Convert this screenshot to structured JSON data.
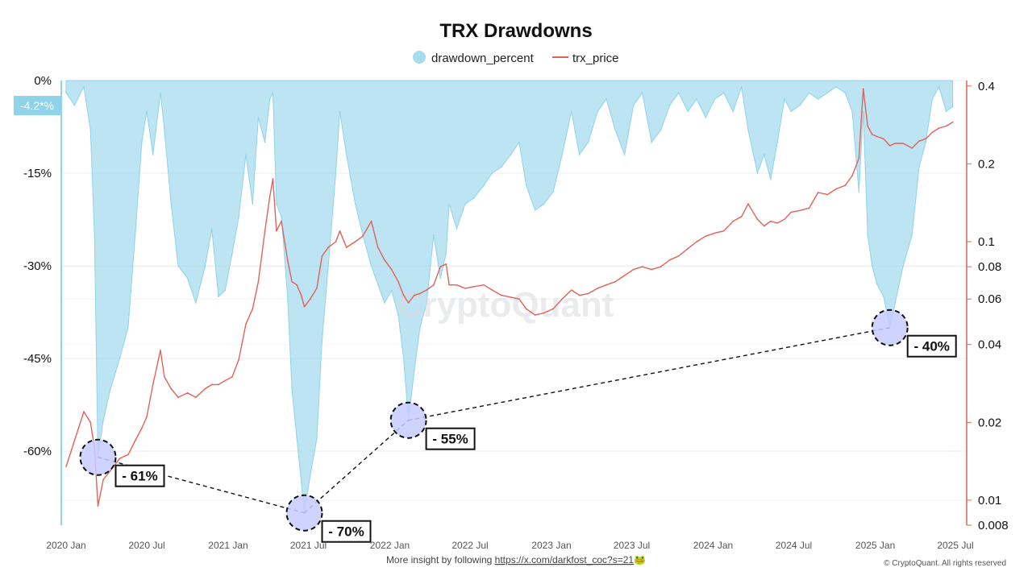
{
  "chart_data": {
    "type": "area+line",
    "title": "TRX Drawdowns",
    "legend": [
      {
        "name": "drawdown_percent",
        "color": "#a7dbee",
        "marker": "circle"
      },
      {
        "name": "trx_price",
        "color": "#e0625a",
        "marker": "line"
      }
    ],
    "x_range": [
      "2020-01-01",
      "2025-07-01"
    ],
    "x_ticks": [
      "2020 Jan",
      "2020 Jul",
      "2021 Jan",
      "2021 Jul",
      "2022 Jan",
      "2022 Jul",
      "2023 Jan",
      "2023 Jul",
      "2024 Jan",
      "2024 Jul",
      "2025 Jan",
      "2025 Jul"
    ],
    "y_left": {
      "label": "drawdown_percent",
      "range": [
        -72,
        0
      ],
      "ticks": [
        0,
        -15,
        -30,
        -45,
        -60
      ],
      "tick_labels": [
        "0%",
        "-15%",
        "-30%",
        "-45%",
        "-60%"
      ]
    },
    "y_right": {
      "label": "trx_price",
      "scale": "log",
      "range": [
        0.008,
        0.42
      ],
      "ticks": [
        0.4,
        0.2,
        0.1,
        0.08,
        0.06,
        0.04,
        0.02,
        0.01,
        0.008
      ],
      "tick_labels": [
        "0.4",
        "0.2",
        "0.1",
        "0.08",
        "0.06",
        "0.04",
        "0.02",
        "0.01",
        "0.008"
      ]
    },
    "current_value_badge": "-4.2*%",
    "drawdown_series": {
      "name": "drawdown_percent",
      "points": [
        [
          "2020-01-01",
          -2
        ],
        [
          "2020-01-20",
          -4
        ],
        [
          "2020-02-10",
          -1
        ],
        [
          "2020-02-25",
          -8
        ],
        [
          "2020-03-05",
          -25
        ],
        [
          "2020-03-13",
          -61
        ],
        [
          "2020-03-25",
          -55
        ],
        [
          "2020-04-10",
          -50
        ],
        [
          "2020-05-01",
          -45
        ],
        [
          "2020-05-20",
          -40
        ],
        [
          "2020-06-05",
          -25
        ],
        [
          "2020-06-20",
          -10
        ],
        [
          "2020-07-01",
          -5
        ],
        [
          "2020-07-15",
          -12
        ],
        [
          "2020-08-01",
          -2
        ],
        [
          "2020-08-10",
          -8
        ],
        [
          "2020-08-25",
          -20
        ],
        [
          "2020-09-10",
          -30
        ],
        [
          "2020-10-01",
          -32
        ],
        [
          "2020-10-20",
          -36
        ],
        [
          "2020-11-10",
          -30
        ],
        [
          "2020-11-25",
          -24
        ],
        [
          "2020-12-10",
          -35
        ],
        [
          "2020-12-25",
          -34
        ],
        [
          "2021-01-10",
          -28
        ],
        [
          "2021-01-25",
          -22
        ],
        [
          "2021-02-10",
          -12
        ],
        [
          "2021-02-25",
          -20
        ],
        [
          "2021-03-10",
          -6
        ],
        [
          "2021-03-25",
          -10
        ],
        [
          "2021-04-05",
          -3
        ],
        [
          "2021-04-12",
          -2
        ],
        [
          "2021-04-20",
          -20
        ],
        [
          "2021-05-01",
          -22
        ],
        [
          "2021-05-15",
          -35
        ],
        [
          "2021-05-25",
          -50
        ],
        [
          "2021-06-05",
          -58
        ],
        [
          "2021-06-15",
          -65
        ],
        [
          "2021-06-22",
          -70
        ],
        [
          "2021-07-05",
          -64
        ],
        [
          "2021-07-20",
          -58
        ],
        [
          "2021-08-01",
          -42
        ],
        [
          "2021-08-15",
          -30
        ],
        [
          "2021-09-01",
          -15
        ],
        [
          "2021-09-10",
          -5
        ],
        [
          "2021-09-25",
          -12
        ],
        [
          "2021-10-15",
          -20
        ],
        [
          "2021-11-01",
          -25
        ],
        [
          "2021-11-20",
          -30
        ],
        [
          "2021-12-05",
          -33
        ],
        [
          "2021-12-20",
          -36
        ],
        [
          "2022-01-05",
          -34
        ],
        [
          "2022-01-20",
          -38
        ],
        [
          "2022-02-01",
          -45
        ],
        [
          "2022-02-12",
          -55
        ],
        [
          "2022-02-25",
          -47
        ],
        [
          "2022-03-10",
          -40
        ],
        [
          "2022-03-25",
          -36
        ],
        [
          "2022-04-10",
          -25
        ],
        [
          "2022-04-25",
          -32
        ],
        [
          "2022-05-08",
          -28
        ],
        [
          "2022-05-15",
          -20
        ],
        [
          "2022-06-01",
          -24
        ],
        [
          "2022-06-20",
          -20
        ],
        [
          "2022-07-10",
          -19
        ],
        [
          "2022-08-01",
          -17
        ],
        [
          "2022-08-20",
          -15
        ],
        [
          "2022-09-10",
          -14
        ],
        [
          "2022-10-01",
          -12
        ],
        [
          "2022-10-20",
          -10
        ],
        [
          "2022-11-05",
          -17
        ],
        [
          "2022-11-25",
          -21
        ],
        [
          "2022-12-15",
          -20
        ],
        [
          "2023-01-05",
          -18
        ],
        [
          "2023-01-25",
          -12
        ],
        [
          "2023-02-15",
          -5
        ],
        [
          "2023-03-05",
          -12
        ],
        [
          "2023-03-25",
          -10
        ],
        [
          "2023-04-15",
          -5
        ],
        [
          "2023-05-05",
          -3
        ],
        [
          "2023-05-25",
          -8
        ],
        [
          "2023-06-15",
          -12
        ],
        [
          "2023-07-05",
          -4
        ],
        [
          "2023-07-25",
          -2
        ],
        [
          "2023-08-15",
          -10
        ],
        [
          "2023-09-05",
          -8
        ],
        [
          "2023-09-25",
          -4
        ],
        [
          "2023-10-15",
          -2
        ],
        [
          "2023-11-05",
          -5
        ],
        [
          "2023-11-25",
          -3
        ],
        [
          "2023-12-15",
          -6
        ],
        [
          "2024-01-05",
          -3
        ],
        [
          "2024-01-25",
          -2
        ],
        [
          "2024-02-15",
          -5
        ],
        [
          "2024-03-05",
          -1
        ],
        [
          "2024-03-20",
          -8
        ],
        [
          "2024-04-10",
          -15
        ],
        [
          "2024-04-25",
          -12
        ],
        [
          "2024-05-10",
          -16
        ],
        [
          "2024-05-25",
          -10
        ],
        [
          "2024-06-10",
          -3
        ],
        [
          "2024-06-25",
          -5
        ],
        [
          "2024-07-15",
          -4
        ],
        [
          "2024-08-05",
          -2
        ],
        [
          "2024-08-25",
          -3
        ],
        [
          "2024-09-15",
          -2
        ],
        [
          "2024-10-05",
          -1
        ],
        [
          "2024-10-25",
          -2
        ],
        [
          "2024-11-10",
          -5
        ],
        [
          "2024-11-25",
          -18
        ],
        [
          "2024-12-05",
          -5
        ],
        [
          "2024-12-15",
          -25
        ],
        [
          "2024-12-25",
          -30
        ],
        [
          "2025-01-05",
          -33
        ],
        [
          "2025-01-20",
          -35
        ],
        [
          "2025-02-03",
          -40
        ],
        [
          "2025-02-15",
          -36
        ],
        [
          "2025-03-05",
          -30
        ],
        [
          "2025-03-25",
          -25
        ],
        [
          "2025-04-10",
          -14
        ],
        [
          "2025-04-25",
          -10
        ],
        [
          "2025-05-10",
          -3
        ],
        [
          "2025-05-25",
          -1
        ],
        [
          "2025-06-10",
          -5
        ],
        [
          "2025-06-25",
          -4.2
        ]
      ]
    },
    "price_series": {
      "name": "trx_price",
      "points": [
        [
          "2020-01-01",
          0.0135
        ],
        [
          "2020-01-20",
          0.017
        ],
        [
          "2020-02-10",
          0.022
        ],
        [
          "2020-02-25",
          0.02
        ],
        [
          "2020-03-05",
          0.016
        ],
        [
          "2020-03-13",
          0.0095
        ],
        [
          "2020-03-25",
          0.012
        ],
        [
          "2020-04-10",
          0.013
        ],
        [
          "2020-05-01",
          0.0145
        ],
        [
          "2020-05-20",
          0.015
        ],
        [
          "2020-06-05",
          0.017
        ],
        [
          "2020-06-20",
          0.019
        ],
        [
          "2020-07-01",
          0.021
        ],
        [
          "2020-07-15",
          0.028
        ],
        [
          "2020-08-01",
          0.038
        ],
        [
          "2020-08-10",
          0.03
        ],
        [
          "2020-08-25",
          0.027
        ],
        [
          "2020-09-10",
          0.025
        ],
        [
          "2020-10-01",
          0.026
        ],
        [
          "2020-10-20",
          0.025
        ],
        [
          "2020-11-10",
          0.027
        ],
        [
          "2020-11-25",
          0.028
        ],
        [
          "2020-12-10",
          0.028
        ],
        [
          "2020-12-25",
          0.029
        ],
        [
          "2021-01-10",
          0.03
        ],
        [
          "2021-01-25",
          0.035
        ],
        [
          "2021-02-10",
          0.048
        ],
        [
          "2021-02-25",
          0.055
        ],
        [
          "2021-03-10",
          0.07
        ],
        [
          "2021-03-25",
          0.11
        ],
        [
          "2021-04-05",
          0.15
        ],
        [
          "2021-04-12",
          0.175
        ],
        [
          "2021-04-20",
          0.11
        ],
        [
          "2021-05-01",
          0.12
        ],
        [
          "2021-05-15",
          0.085
        ],
        [
          "2021-05-25",
          0.07
        ],
        [
          "2021-06-05",
          0.068
        ],
        [
          "2021-06-15",
          0.062
        ],
        [
          "2021-06-22",
          0.056
        ],
        [
          "2021-07-05",
          0.06
        ],
        [
          "2021-07-20",
          0.066
        ],
        [
          "2021-08-01",
          0.088
        ],
        [
          "2021-08-15",
          0.095
        ],
        [
          "2021-09-01",
          0.1
        ],
        [
          "2021-09-10",
          0.11
        ],
        [
          "2021-09-25",
          0.095
        ],
        [
          "2021-10-15",
          0.1
        ],
        [
          "2021-11-01",
          0.105
        ],
        [
          "2021-11-20",
          0.12
        ],
        [
          "2021-12-05",
          0.095
        ],
        [
          "2021-12-20",
          0.085
        ],
        [
          "2022-01-05",
          0.078
        ],
        [
          "2022-01-20",
          0.07
        ],
        [
          "2022-02-01",
          0.062
        ],
        [
          "2022-02-12",
          0.058
        ],
        [
          "2022-02-25",
          0.062
        ],
        [
          "2022-03-10",
          0.063
        ],
        [
          "2022-03-25",
          0.065
        ],
        [
          "2022-04-10",
          0.068
        ],
        [
          "2022-04-25",
          0.08
        ],
        [
          "2022-05-08",
          0.082
        ],
        [
          "2022-05-15",
          0.068
        ],
        [
          "2022-06-01",
          0.068
        ],
        [
          "2022-06-20",
          0.066
        ],
        [
          "2022-07-10",
          0.067
        ],
        [
          "2022-08-01",
          0.068
        ],
        [
          "2022-08-20",
          0.065
        ],
        [
          "2022-09-10",
          0.062
        ],
        [
          "2022-10-01",
          0.061
        ],
        [
          "2022-10-20",
          0.06
        ],
        [
          "2022-11-05",
          0.055
        ],
        [
          "2022-11-25",
          0.052
        ],
        [
          "2022-12-15",
          0.053
        ],
        [
          "2023-01-05",
          0.055
        ],
        [
          "2023-01-25",
          0.06
        ],
        [
          "2023-02-15",
          0.065
        ],
        [
          "2023-03-05",
          0.062
        ],
        [
          "2023-03-25",
          0.063
        ],
        [
          "2023-04-15",
          0.066
        ],
        [
          "2023-05-05",
          0.068
        ],
        [
          "2023-05-25",
          0.07
        ],
        [
          "2023-06-15",
          0.074
        ],
        [
          "2023-07-05",
          0.078
        ],
        [
          "2023-07-25",
          0.08
        ],
        [
          "2023-08-15",
          0.078
        ],
        [
          "2023-09-05",
          0.08
        ],
        [
          "2023-09-25",
          0.085
        ],
        [
          "2023-10-15",
          0.088
        ],
        [
          "2023-11-05",
          0.094
        ],
        [
          "2023-11-25",
          0.1
        ],
        [
          "2023-12-15",
          0.105
        ],
        [
          "2024-01-05",
          0.108
        ],
        [
          "2024-01-25",
          0.11
        ],
        [
          "2024-02-15",
          0.12
        ],
        [
          "2024-03-05",
          0.125
        ],
        [
          "2024-03-20",
          0.14
        ],
        [
          "2024-04-10",
          0.122
        ],
        [
          "2024-04-25",
          0.115
        ],
        [
          "2024-05-10",
          0.12
        ],
        [
          "2024-05-25",
          0.118
        ],
        [
          "2024-06-10",
          0.122
        ],
        [
          "2024-06-25",
          0.13
        ],
        [
          "2024-07-15",
          0.132
        ],
        [
          "2024-08-05",
          0.135
        ],
        [
          "2024-08-25",
          0.155
        ],
        [
          "2024-09-15",
          0.152
        ],
        [
          "2024-10-05",
          0.16
        ],
        [
          "2024-10-25",
          0.165
        ],
        [
          "2024-11-10",
          0.18
        ],
        [
          "2024-11-25",
          0.21
        ],
        [
          "2024-12-05",
          0.39
        ],
        [
          "2024-12-15",
          0.28
        ],
        [
          "2024-12-25",
          0.26
        ],
        [
          "2025-01-05",
          0.255
        ],
        [
          "2025-01-20",
          0.25
        ],
        [
          "2025-02-03",
          0.235
        ],
        [
          "2025-02-15",
          0.24
        ],
        [
          "2025-03-05",
          0.24
        ],
        [
          "2025-03-25",
          0.23
        ],
        [
          "2025-04-10",
          0.245
        ],
        [
          "2025-04-25",
          0.25
        ],
        [
          "2025-05-10",
          0.265
        ],
        [
          "2025-05-25",
          0.275
        ],
        [
          "2025-06-10",
          0.28
        ],
        [
          "2025-06-25",
          0.29
        ]
      ]
    },
    "annotations": [
      {
        "label": "- 61%",
        "date": "2020-03-13",
        "drawdown": -61
      },
      {
        "label": "- 70%",
        "date": "2021-06-22",
        "drawdown": -70
      },
      {
        "label": "- 55%",
        "date": "2022-02-12",
        "drawdown": -55
      },
      {
        "label": "- 40%",
        "date": "2025-02-03",
        "drawdown": -40
      }
    ]
  },
  "watermark": "CryptoQuant",
  "footer": {
    "prefix": "More insight by following ",
    "link": "https://x.com/darkfost_coc?s=21",
    "emoji": "🐸",
    "copyright": "© CryptoQuant. All rights reserved"
  }
}
